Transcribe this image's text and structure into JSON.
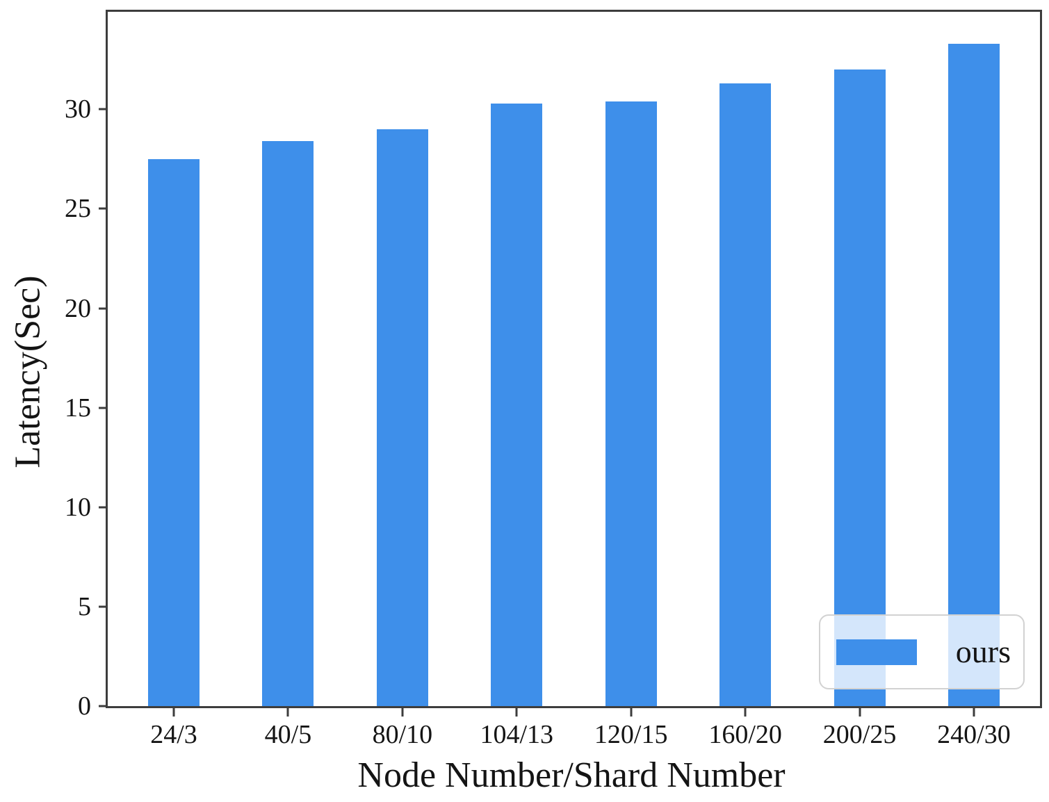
{
  "chart_data": {
    "type": "bar",
    "title": "",
    "xlabel": "Node Number/Shard Number",
    "ylabel": "Latency(Sec)",
    "categories": [
      "24/3",
      "40/5",
      "80/10",
      "104/13",
      "120/15",
      "160/20",
      "200/25",
      "240/30"
    ],
    "series": [
      {
        "name": "ours",
        "values": [
          27.5,
          28.4,
          29.0,
          30.3,
          30.4,
          31.3,
          32.0,
          33.3
        ]
      }
    ],
    "yticks": [
      0,
      5,
      10,
      15,
      20,
      25,
      30
    ],
    "ylim": [
      0,
      34.9
    ],
    "grid": "off",
    "legend_position": "lower right",
    "bar_color": "#3E8FEA",
    "spine_color": "#3d3d3d"
  },
  "legend": {
    "items": [
      {
        "label": "ours",
        "color": "#3E8FEA"
      }
    ]
  }
}
